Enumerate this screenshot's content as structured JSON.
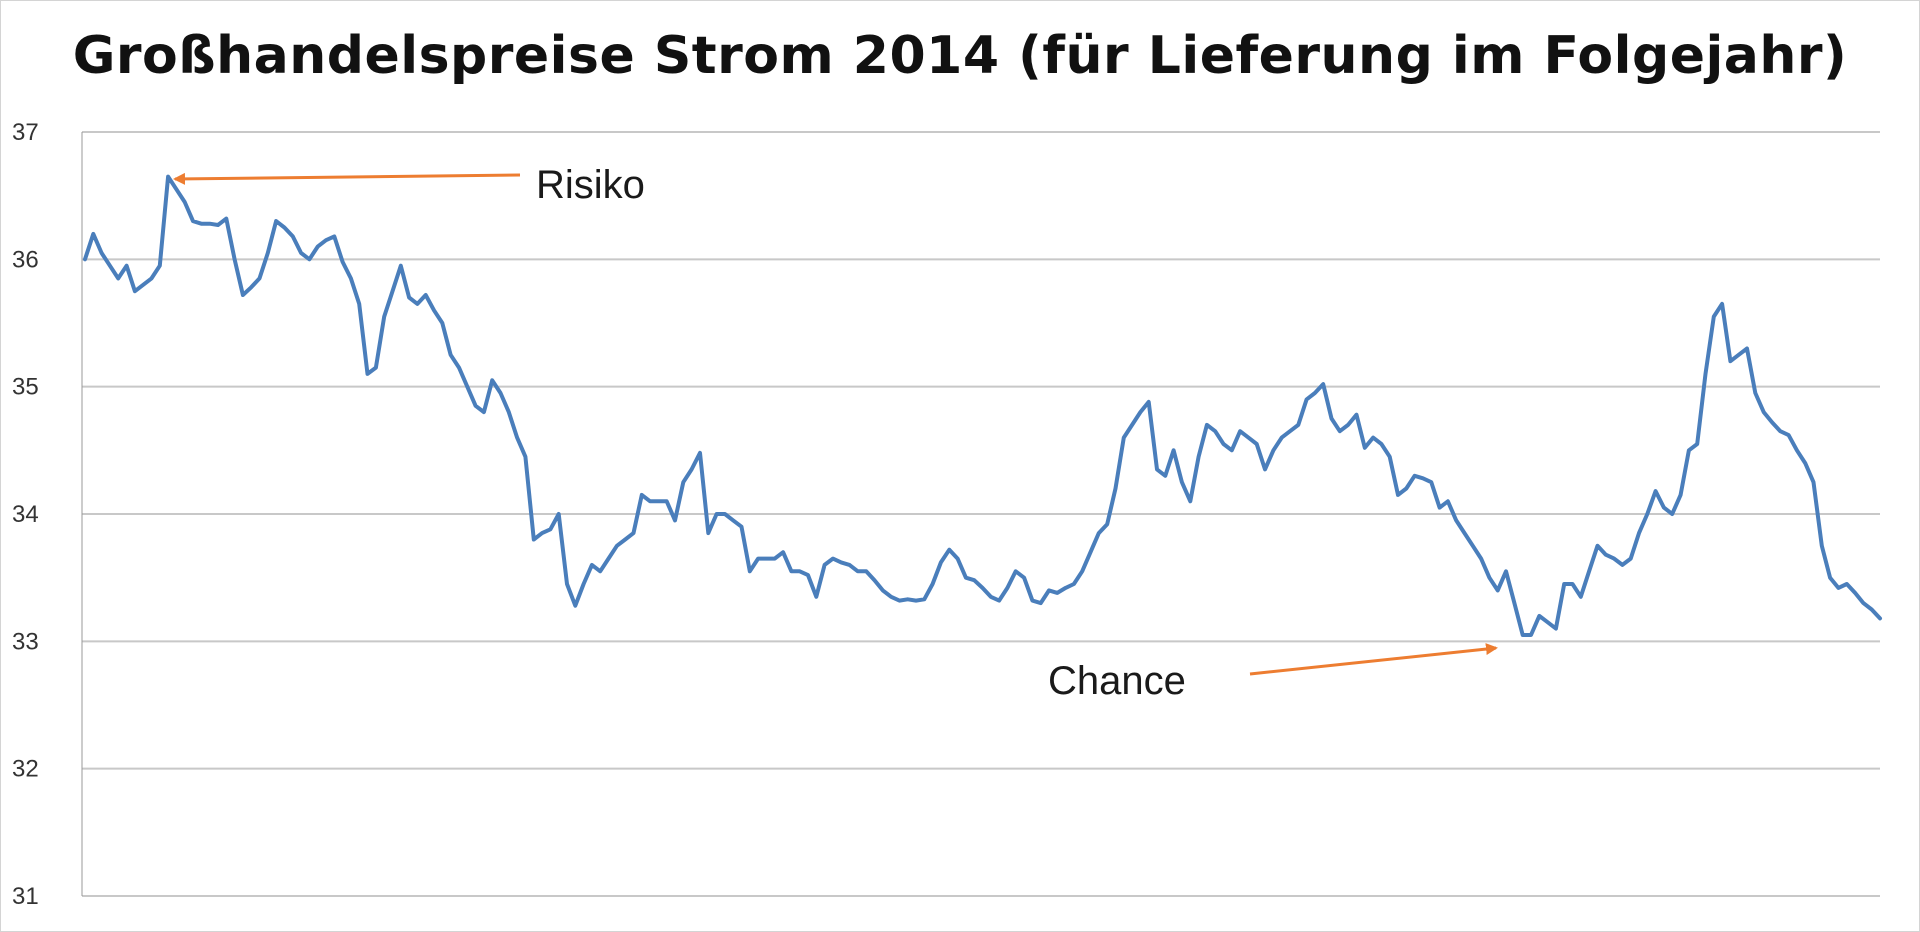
{
  "chart_data": {
    "type": "line",
    "title": "Großhandelspreise Strom 2014 (für Lieferung im Folgejahr)",
    "xlabel": "",
    "ylabel": "",
    "ylim": [
      31,
      37
    ],
    "y_ticks": [
      "31",
      "32",
      "33",
      "34",
      "35",
      "36",
      "37"
    ],
    "grid": true,
    "line_color": "#4a7ebb",
    "annotation_color": "#ed7d31",
    "series": [
      {
        "values": [
          36.0,
          36.2,
          36.05,
          35.95,
          35.85,
          35.95,
          35.75,
          35.8,
          35.85,
          35.95,
          36.65,
          36.55,
          36.45,
          36.3,
          36.28,
          36.28,
          36.27,
          36.32,
          36.0,
          35.72,
          35.78,
          35.85,
          36.05,
          36.3,
          36.25,
          36.18,
          36.05,
          36.0,
          36.1,
          36.15,
          36.18,
          35.98,
          35.85,
          35.65,
          35.1,
          35.15,
          35.55,
          35.75,
          35.95,
          35.7,
          35.65,
          35.72,
          35.6,
          35.5,
          35.25,
          35.15,
          35.0,
          34.85,
          34.8,
          35.05,
          34.95,
          34.8,
          34.6,
          34.45,
          33.8,
          33.85,
          33.88,
          34.0,
          33.45,
          33.28,
          33.45,
          33.6,
          33.55,
          33.65,
          33.75,
          33.8,
          33.85,
          34.15,
          34.1,
          34.1,
          34.1,
          33.95,
          34.25,
          34.35,
          34.48,
          33.85,
          34.0,
          34.0,
          33.95,
          33.9,
          33.55,
          33.65,
          33.65,
          33.65,
          33.7,
          33.55,
          33.55,
          33.52,
          33.35,
          33.6,
          33.65,
          33.62,
          33.6,
          33.55,
          33.55,
          33.48,
          33.4,
          33.35,
          33.32,
          33.33,
          33.32,
          33.33,
          33.45,
          33.62,
          33.72,
          33.65,
          33.5,
          33.48,
          33.42,
          33.35,
          33.32,
          33.42,
          33.55,
          33.5,
          33.32,
          33.3,
          33.4,
          33.38,
          33.42,
          33.45,
          33.55,
          33.7,
          33.85,
          33.92,
          34.2,
          34.6,
          34.7,
          34.8,
          34.88,
          34.35,
          34.3,
          34.5,
          34.25,
          34.1,
          34.45,
          34.7,
          34.65,
          34.55,
          34.5,
          34.65,
          34.6,
          34.55,
          34.35,
          34.5,
          34.6,
          34.65,
          34.7,
          34.9,
          34.95,
          35.02,
          34.75,
          34.65,
          34.7,
          34.78,
          34.52,
          34.6,
          34.55,
          34.45,
          34.15,
          34.2,
          34.3,
          34.28,
          34.25,
          34.05,
          34.1,
          33.95,
          33.85,
          33.75,
          33.65,
          33.5,
          33.4,
          33.55,
          33.3,
          33.05,
          33.05,
          33.2,
          33.15,
          33.1,
          33.45,
          33.45,
          33.35,
          33.55,
          33.75,
          33.68,
          33.65,
          33.6,
          33.65,
          33.85,
          34.0,
          34.18,
          34.05,
          34.0,
          34.15,
          34.5,
          34.55,
          35.1,
          35.55,
          35.65,
          35.2,
          35.25,
          35.3,
          34.95,
          34.8,
          34.72,
          34.65,
          34.62,
          34.5,
          34.4,
          34.25,
          33.75,
          33.5,
          33.42,
          33.45,
          33.38,
          33.3,
          33.25,
          33.18
        ]
      }
    ],
    "annotations": [
      {
        "text": "Risiko"
      },
      {
        "text": "Chance"
      }
    ]
  }
}
